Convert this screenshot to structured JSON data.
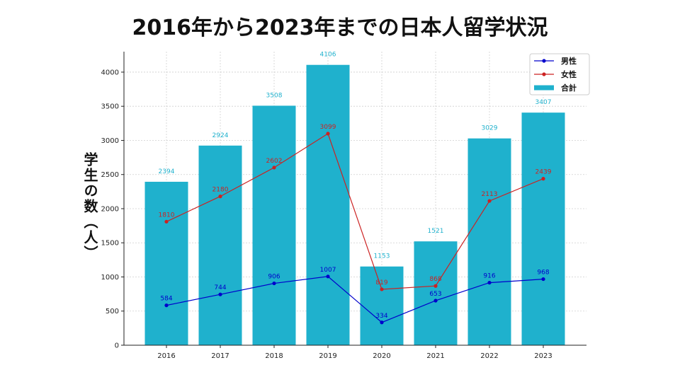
{
  "chart_data": {
    "type": "bar",
    "title": "2016年から2023年までの日本人留学状況",
    "ylabel": "学生の数（人）",
    "xlabel": "",
    "categories": [
      "2016",
      "2017",
      "2018",
      "2019",
      "2020",
      "2021",
      "2022",
      "2023"
    ],
    "ylim": [
      0,
      4300
    ],
    "yticks": [
      0,
      500,
      1000,
      1500,
      2000,
      2500,
      3000,
      3500,
      4000
    ],
    "grid": true,
    "legend_position": "top-right",
    "series": [
      {
        "name": "男性",
        "kind": "line",
        "color": "#0000cc",
        "values": [
          584,
          744,
          906,
          1007,
          334,
          653,
          916,
          968
        ]
      },
      {
        "name": "女性",
        "kind": "line",
        "color": "#cc2222",
        "values": [
          1810,
          2180,
          2602,
          3099,
          819,
          868,
          2113,
          2439
        ]
      },
      {
        "name": "合計",
        "kind": "bar",
        "color": "#1fb1cd",
        "values": [
          2394,
          2924,
          3508,
          4106,
          1153,
          1521,
          3029,
          3407
        ]
      }
    ]
  }
}
